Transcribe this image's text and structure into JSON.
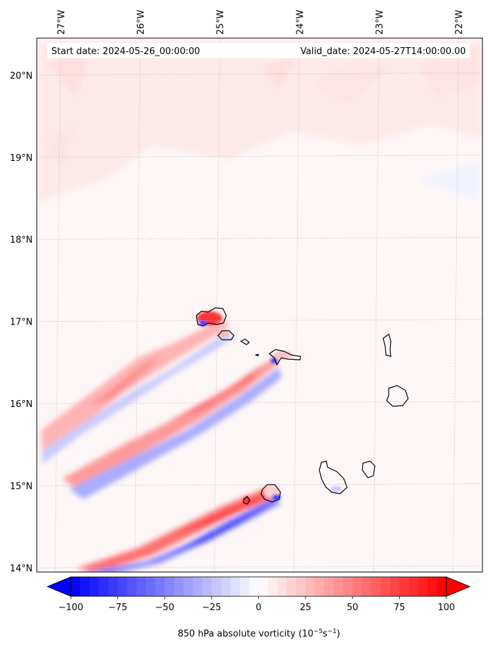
{
  "header": {
    "start_date": "Start date: 2024-05-26_00:00:00",
    "valid_date": "Valid_date: 2024-05-27T14:00:00.00"
  },
  "map": {
    "lon_range": [
      -27.3,
      -21.7
    ],
    "lat_range": [
      13.95,
      20.45
    ],
    "gridlines": true,
    "lon_ticks": [
      {
        "value": -27,
        "label": "27°W"
      },
      {
        "value": -26,
        "label": "26°W"
      },
      {
        "value": -25,
        "label": "25°W"
      },
      {
        "value": -24,
        "label": "24°W"
      },
      {
        "value": -23,
        "label": "23°W"
      },
      {
        "value": -22,
        "label": "22°W"
      }
    ],
    "lat_ticks": [
      {
        "value": 20,
        "label": "20°N"
      },
      {
        "value": 19,
        "label": "19°N"
      },
      {
        "value": 18,
        "label": "18°N"
      },
      {
        "value": 17,
        "label": "17°N"
      },
      {
        "value": 16,
        "label": "16°N"
      },
      {
        "value": 15,
        "label": "15°N"
      },
      {
        "value": 14,
        "label": "14°N"
      }
    ],
    "background_color": "#fdf6f6",
    "features": {
      "islands": "Cape Verde islands (coastline outlines)",
      "vorticity_bands": "wind-shadow streaks SW of islands, positive (red) north and negative (blue) south"
    }
  },
  "colorbar": {
    "min": -100,
    "max": 100,
    "extend": "both",
    "colormap": "bwr",
    "ticks": [
      {
        "value": -100,
        "label": "−100"
      },
      {
        "value": -75,
        "label": "−75"
      },
      {
        "value": -50,
        "label": "−50"
      },
      {
        "value": -25,
        "label": "−25"
      },
      {
        "value": 0,
        "label": "0"
      },
      {
        "value": 25,
        "label": "25"
      },
      {
        "value": 50,
        "label": "50"
      },
      {
        "value": 75,
        "label": "75"
      },
      {
        "value": 100,
        "label": "100"
      }
    ],
    "label_main": "850 hPa absolute vorticity (10",
    "label_exp1": "−5",
    "label_mid": "s",
    "label_exp2": "−1",
    "label_end": ")",
    "low_color": "#0000ff",
    "high_color": "#ff0000"
  }
}
